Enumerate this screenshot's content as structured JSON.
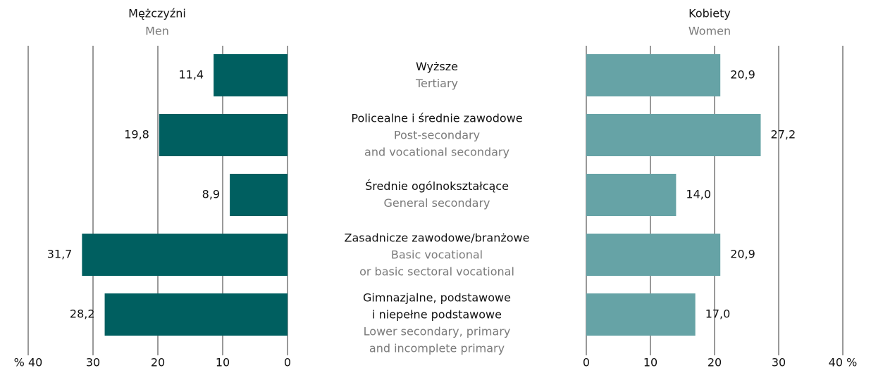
{
  "chart_data": {
    "type": "butterfly",
    "categories": [
      {
        "pl": [
          "Wyższe"
        ],
        "en": [
          "Tertiary"
        ]
      },
      {
        "pl": [
          "Policealne i średnie zawodowe"
        ],
        "en": [
          "Post-secondary",
          "and vocational secondary"
        ]
      },
      {
        "pl": [
          "Średnie ogólnokształcące"
        ],
        "en": [
          "General secondary"
        ]
      },
      {
        "pl": [
          "Zasadnicze zawodowe/branżowe"
        ],
        "en": [
          "Basic vocational",
          "or basic sectoral vocational"
        ]
      },
      {
        "pl": [
          "Gimnazjalne, podstawowe",
          "i niepełne podstawowe"
        ],
        "en": [
          "Lower secondary, primary",
          "and incomplete primary"
        ]
      }
    ],
    "series": [
      {
        "name": "Mężczyźni",
        "name_en": "Men",
        "color": "#005f60",
        "values": [
          11.4,
          19.8,
          8.9,
          31.7,
          28.2
        ],
        "value_labels": [
          "11,4",
          "19,8",
          "8,9",
          "31,7",
          "28,2"
        ],
        "xlim": [
          0,
          40
        ],
        "xticks": [
          {
            "value": 40,
            "label": "% 40"
          },
          30,
          20,
          10,
          0
        ]
      },
      {
        "name": "Kobiety",
        "name_en": "Women",
        "color": "#66a3a6",
        "values": [
          20.9,
          27.2,
          14.0,
          20.9,
          17.0
        ],
        "value_labels": [
          "20,9",
          "27,2",
          "14,0",
          "20,9",
          "17,0"
        ],
        "xlim": [
          0,
          40
        ],
        "xticks": [
          0,
          10,
          20,
          30,
          {
            "value": 40,
            "label": "40 %"
          }
        ]
      }
    ],
    "grid": true
  }
}
